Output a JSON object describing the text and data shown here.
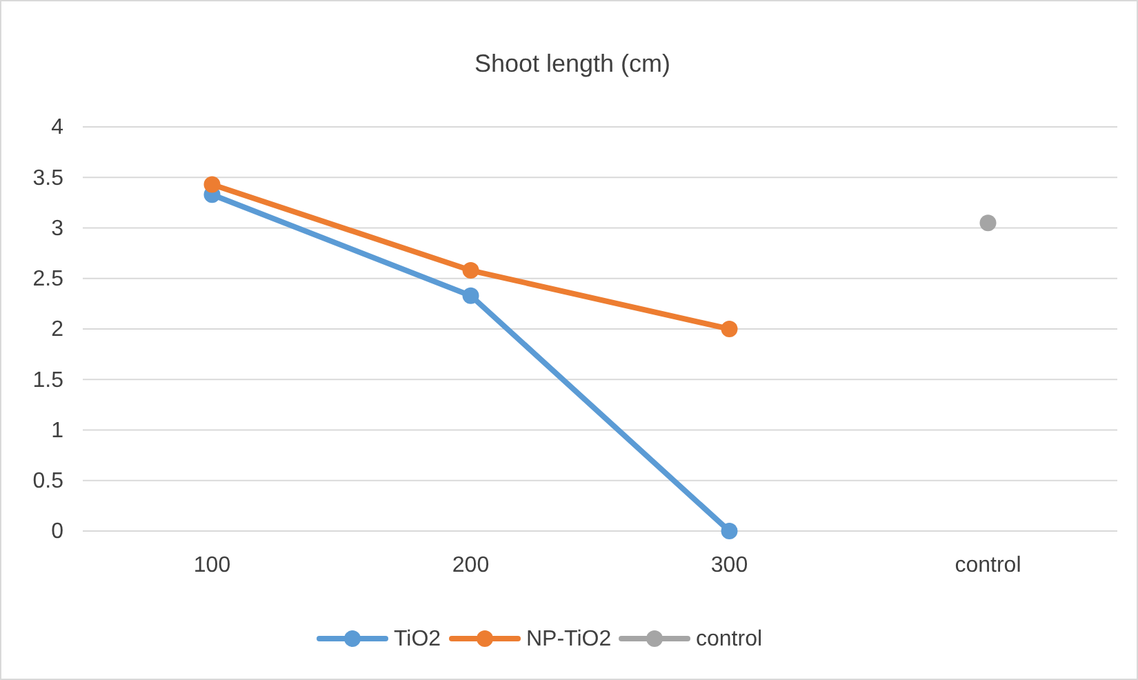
{
  "chart_data": {
    "type": "line",
    "title": "Shoot length (cm)",
    "categories": [
      "100",
      "200",
      "300",
      "control"
    ],
    "series": [
      {
        "name": "TiO2",
        "color": "#5b9bd5",
        "values": [
          3.33,
          2.33,
          0,
          null
        ]
      },
      {
        "name": "NP-TiO2",
        "color": "#ed7d31",
        "values": [
          3.43,
          2.58,
          2.0,
          null
        ]
      },
      {
        "name": "control",
        "color": "#a5a5a5",
        "values": [
          null,
          null,
          null,
          3.05
        ]
      }
    ],
    "ylim": [
      0,
      4
    ],
    "yticks": [
      0,
      0.5,
      1,
      1.5,
      2,
      2.5,
      3,
      3.5,
      4
    ],
    "grid": "y",
    "legend": "bottom",
    "marker": "circle",
    "line_style": "solid"
  }
}
